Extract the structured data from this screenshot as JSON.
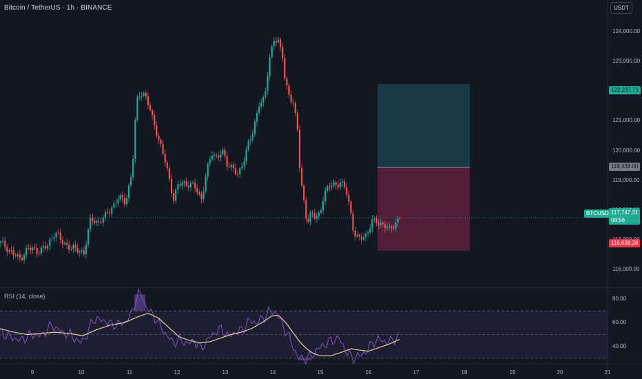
{
  "header": {
    "title": "Bitcoin / TetherUS · 1h · BINANCE",
    "currency_button": "USDT"
  },
  "rsi_panel": {
    "title": "RSI (14, close)",
    "levels": [
      "80.00",
      "60.00",
      "40.00"
    ]
  },
  "price_axis": {
    "ticks": [
      "124,000.00",
      "123,000.00",
      "122,000.00",
      "121,000.00",
      "120,000.00",
      "119,000.00",
      "118,000.00",
      "117,000.00",
      "116,000.00"
    ]
  },
  "time_axis": {
    "ticks": [
      "9",
      "10",
      "11",
      "12",
      "13",
      "14",
      "15",
      "16",
      "17",
      "18",
      "19",
      "20",
      "21"
    ]
  },
  "price_tags": {
    "target": "122,237.71",
    "entry": "119,438.00",
    "symbol": "BTCUSDT",
    "last": "117,747.31",
    "countdown": "08:56",
    "stop": "116,638.28"
  },
  "colors": {
    "background": "#131722",
    "up": "#26a69a",
    "down": "#ef5350",
    "profit_zone": "#1a3d4a",
    "loss_zone": "#5a1f3a",
    "rsi_line": "#7e57c2",
    "rsi_ma": "#e6d3a3"
  },
  "chart_data": {
    "type": "candlestick",
    "symbol": "BTCUSDT",
    "timeframe": "1h",
    "ylim": [
      115800,
      124600
    ],
    "price_path": [
      [
        0,
        116900
      ],
      [
        10,
        116750
      ],
      [
        20,
        116500
      ],
      [
        28,
        116350
      ],
      [
        40,
        116700
      ],
      [
        55,
        116650
      ],
      [
        68,
        116750
      ],
      [
        80,
        117300
      ],
      [
        90,
        116900
      ],
      [
        100,
        116800
      ],
      [
        110,
        116650
      ],
      [
        122,
        116600
      ],
      [
        132,
        117700
      ],
      [
        142,
        117600
      ],
      [
        152,
        117750
      ],
      [
        162,
        118100
      ],
      [
        172,
        118400
      ],
      [
        182,
        118300
      ],
      [
        192,
        119300
      ],
      [
        198,
        121600
      ],
      [
        204,
        122000
      ],
      [
        210,
        121900
      ],
      [
        216,
        121500
      ],
      [
        222,
        121000
      ],
      [
        228,
        120600
      ],
      [
        234,
        120100
      ],
      [
        240,
        119600
      ],
      [
        246,
        119000
      ],
      [
        252,
        118400
      ],
      [
        258,
        118800
      ],
      [
        265,
        118900
      ],
      [
        275,
        118900
      ],
      [
        285,
        118700
      ],
      [
        292,
        118350
      ],
      [
        300,
        119300
      ],
      [
        308,
        119900
      ],
      [
        315,
        119800
      ],
      [
        322,
        120000
      ],
      [
        330,
        119500
      ],
      [
        338,
        119500
      ],
      [
        346,
        119100
      ],
      [
        354,
        119700
      ],
      [
        360,
        120300
      ],
      [
        368,
        120600
      ],
      [
        376,
        121600
      ],
      [
        384,
        121800
      ],
      [
        392,
        123100
      ],
      [
        398,
        123800
      ],
      [
        404,
        123700
      ],
      [
        410,
        123200
      ],
      [
        414,
        122200
      ],
      [
        420,
        121900
      ],
      [
        426,
        121600
      ],
      [
        432,
        120700
      ],
      [
        436,
        119000
      ],
      [
        440,
        118500
      ],
      [
        446,
        117600
      ],
      [
        452,
        117900
      ],
      [
        458,
        117700
      ],
      [
        464,
        117900
      ],
      [
        470,
        118500
      ],
      [
        478,
        118800
      ],
      [
        486,
        118900
      ],
      [
        494,
        118900
      ],
      [
        502,
        118700
      ],
      [
        508,
        118100
      ],
      [
        514,
        117200
      ],
      [
        520,
        117000
      ],
      [
        526,
        117100
      ],
      [
        532,
        117200
      ],
      [
        540,
        117600
      ],
      [
        550,
        117600
      ],
      [
        558,
        117500
      ],
      [
        566,
        117300
      ],
      [
        574,
        117600
      ],
      [
        581,
        117747
      ]
    ],
    "position": {
      "target": 122237.71,
      "entry": 119438.0,
      "stop": 116638.28
    },
    "rsi": {
      "ylim": [
        27,
        87
      ],
      "levels": [
        70,
        50,
        30
      ],
      "values": [
        [
          0,
          52
        ],
        [
          15,
          48
        ],
        [
          30,
          45
        ],
        [
          45,
          50
        ],
        [
          60,
          49
        ],
        [
          75,
          58
        ],
        [
          90,
          52
        ],
        [
          105,
          49
        ],
        [
          115,
          43
        ],
        [
          125,
          48
        ],
        [
          135,
          63
        ],
        [
          150,
          62
        ],
        [
          165,
          58
        ],
        [
          180,
          60
        ],
        [
          190,
          66
        ],
        [
          200,
          84
        ],
        [
          206,
          84
        ],
        [
          212,
          73
        ],
        [
          222,
          67
        ],
        [
          232,
          58
        ],
        [
          242,
          49
        ],
        [
          252,
          43
        ],
        [
          262,
          46
        ],
        [
          272,
          42
        ],
        [
          282,
          45
        ],
        [
          292,
          38
        ],
        [
          302,
          46
        ],
        [
          312,
          52
        ],
        [
          322,
          55
        ],
        [
          332,
          48
        ],
        [
          342,
          52
        ],
        [
          352,
          54
        ],
        [
          362,
          62
        ],
        [
          372,
          60
        ],
        [
          382,
          64
        ],
        [
          392,
          70
        ],
        [
          402,
          68
        ],
        [
          412,
          56
        ],
        [
          422,
          45
        ],
        [
          432,
          31
        ],
        [
          442,
          29
        ],
        [
          452,
          32
        ],
        [
          462,
          38
        ],
        [
          472,
          42
        ],
        [
          482,
          45
        ],
        [
          492,
          47
        ],
        [
          502,
          36
        ],
        [
          512,
          30
        ],
        [
          522,
          32
        ],
        [
          532,
          36
        ],
        [
          542,
          44
        ],
        [
          552,
          46
        ],
        [
          562,
          43
        ],
        [
          570,
          46
        ],
        [
          580,
          48
        ]
      ],
      "ma": [
        [
          0,
          55
        ],
        [
          20,
          52
        ],
        [
          40,
          50
        ],
        [
          60,
          51
        ],
        [
          80,
          52
        ],
        [
          100,
          51
        ],
        [
          120,
          49
        ],
        [
          140,
          54
        ],
        [
          160,
          58
        ],
        [
          180,
          60
        ],
        [
          200,
          65
        ],
        [
          215,
          68
        ],
        [
          230,
          64
        ],
        [
          245,
          56
        ],
        [
          260,
          48
        ],
        [
          275,
          45
        ],
        [
          290,
          43
        ],
        [
          305,
          44
        ],
        [
          320,
          47
        ],
        [
          335,
          50
        ],
        [
          350,
          52
        ],
        [
          365,
          55
        ],
        [
          380,
          60
        ],
        [
          395,
          66
        ],
        [
          405,
          66
        ],
        [
          415,
          60
        ],
        [
          425,
          52
        ],
        [
          435,
          44
        ],
        [
          445,
          38
        ],
        [
          455,
          34
        ],
        [
          465,
          32
        ],
        [
          480,
          32
        ],
        [
          495,
          35
        ],
        [
          510,
          38
        ],
        [
          520,
          37
        ],
        [
          535,
          36
        ],
        [
          550,
          39
        ],
        [
          565,
          42
        ],
        [
          580,
          46
        ]
      ]
    }
  }
}
